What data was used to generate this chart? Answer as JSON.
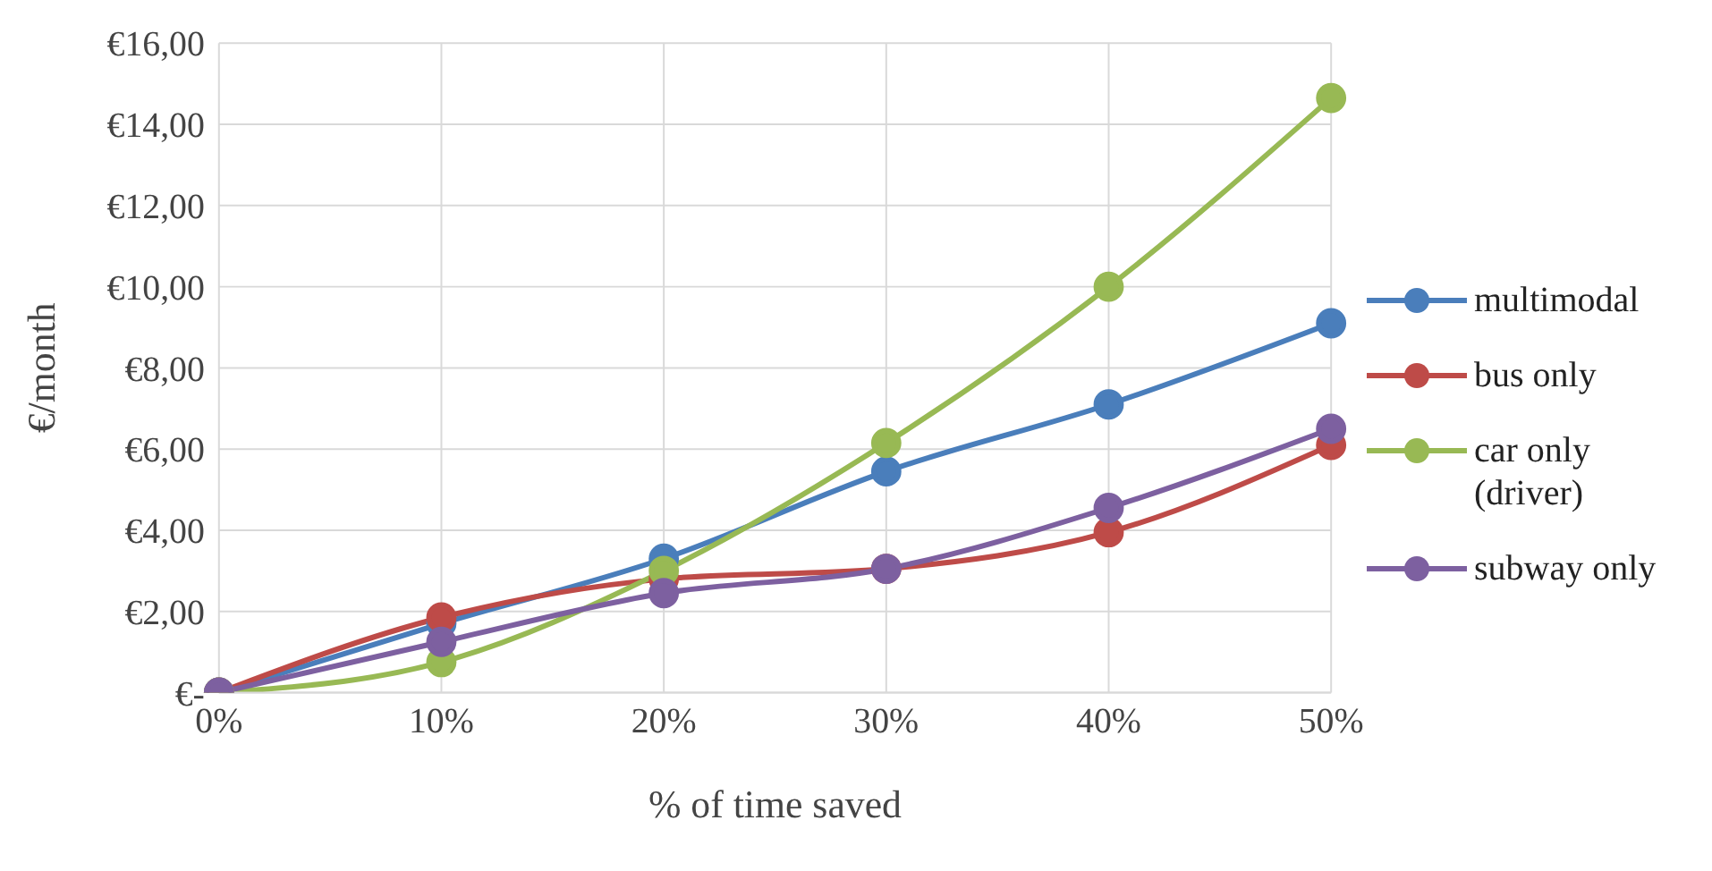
{
  "chart_data": {
    "type": "line",
    "xlabel": "% of time saved",
    "ylabel": "€/month",
    "categories": [
      "0%",
      "10%",
      "20%",
      "30%",
      "40%",
      "50%"
    ],
    "series": [
      {
        "name": "multimodal",
        "color": "#4a7ebb",
        "values": [
          0,
          1.7,
          3.3,
          5.45,
          7.1,
          9.1
        ]
      },
      {
        "name": "bus only",
        "color": "#be4b48",
        "values": [
          0,
          1.85,
          2.8,
          3.05,
          3.95,
          6.1
        ]
      },
      {
        "name": "car only (driver)",
        "color": "#98b954",
        "values": [
          0,
          0.75,
          3.0,
          6.15,
          10.0,
          14.65
        ]
      },
      {
        "name": "subway only",
        "color": "#7d60a0",
        "values": [
          0,
          1.25,
          2.45,
          3.05,
          4.55,
          6.5
        ]
      }
    ],
    "ylim": [
      0,
      16
    ],
    "yticks": [
      {
        "value": 0,
        "label": "€-"
      },
      {
        "value": 2,
        "label": "€2,00"
      },
      {
        "value": 4,
        "label": "€4,00"
      },
      {
        "value": 6,
        "label": "€6,00"
      },
      {
        "value": 8,
        "label": "€8,00"
      },
      {
        "value": 10,
        "label": "€10,00"
      },
      {
        "value": 12,
        "label": "€12,00"
      },
      {
        "value": 14,
        "label": "€14,00"
      },
      {
        "value": 16,
        "label": "€16,00"
      }
    ],
    "grid": true,
    "legend": "right",
    "marker": "circle",
    "line_style": "solid"
  }
}
